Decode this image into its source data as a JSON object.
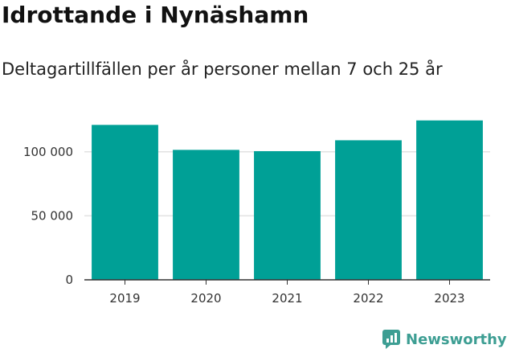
{
  "title": "Idrottande i Nynäshamn",
  "subtitle": "Deltagartillfällen per år personer mellan 7 och 25 år",
  "brand": {
    "name": "Newsworthy",
    "icon": "newsworthy-logo-icon"
  },
  "colors": {
    "bar": "#00a096",
    "brand": "#3d9e93",
    "grid": "#e2e2e2",
    "axis": "#333333"
  },
  "chart_data": {
    "type": "bar",
    "categories": [
      "2019",
      "2020",
      "2021",
      "2022",
      "2023"
    ],
    "values": [
      121000,
      101500,
      100500,
      109000,
      124500
    ],
    "yticks": [
      0,
      50000,
      100000
    ],
    "ytick_labels": [
      "0",
      "50 000",
      "100 000"
    ],
    "ylim": [
      0,
      130000
    ],
    "grid": true,
    "legend": "none"
  }
}
